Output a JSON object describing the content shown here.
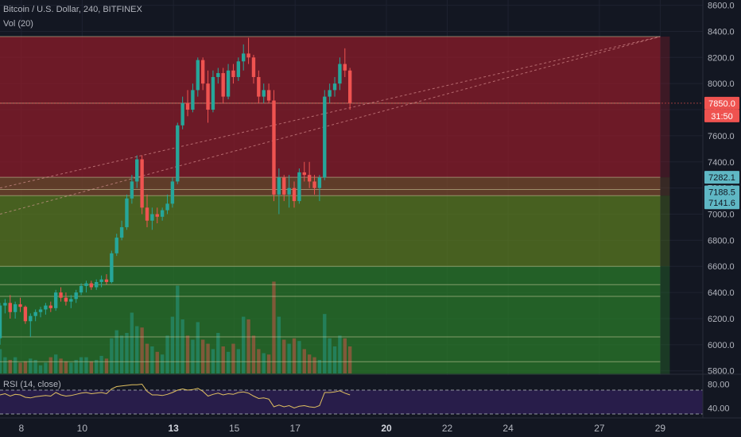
{
  "header": {
    "title": "Bitcoin / U.S. Dollar, 240, BITFINEX",
    "volume_label": "Vol (20)",
    "rsi_label": "RSI (14, close)"
  },
  "colors": {
    "background": "#131722",
    "up": "#26a69a",
    "down": "#ef5350",
    "price_tag": "#ef5350",
    "level_tag": "#5fb7c4",
    "zone_red": "#8c1c2a",
    "zone_brown": "#7a4a2c",
    "zone_olive": "#5a7a20",
    "zone_green": "#2a7a2a",
    "rsi_band": "#2e1f55",
    "rsi_line": "#e0c060"
  },
  "chart_data": {
    "type": "candlestick",
    "title": "Bitcoin / U.S. Dollar, 240, BITFINEX",
    "price_axis": {
      "ticks": [
        5800,
        6000,
        6200,
        6400,
        6600,
        6800,
        7000,
        7200,
        7400,
        7600,
        7800,
        8000,
        8200,
        8400,
        8600
      ],
      "tick_labels": [
        "5800.0",
        "6000.0",
        "6200.0",
        "6400.0",
        "6600.0",
        "6800.0",
        "7000.0",
        "7200.0",
        "7400.0",
        "7600.0",
        "7800.0",
        "8000.0",
        "8200.0",
        "8400.0",
        "8600.0"
      ],
      "range": [
        5780,
        8640
      ]
    },
    "time_axis": {
      "ticks": [
        8,
        10,
        13,
        15,
        17,
        20,
        22,
        24,
        27,
        29
      ],
      "tick_labels": [
        "8",
        "10",
        "13",
        "15",
        "17",
        "20",
        "22",
        "24",
        "27",
        "29"
      ],
      "bold": [
        13,
        20
      ],
      "range": [
        7.3,
        30.4
      ]
    },
    "price_tags": [
      {
        "label": "7850.0",
        "value": 7850,
        "kind": "last"
      },
      {
        "label": "31:50",
        "value": 7795,
        "kind": "timer"
      },
      {
        "label": "7282.1",
        "value": 7282.1,
        "kind": "level"
      },
      {
        "label": "7188.5",
        "value": 7188.5,
        "kind": "level"
      },
      {
        "label": "7141.6",
        "value": 7141.6,
        "kind": "level"
      }
    ],
    "zones": [
      {
        "from": 7282,
        "to": 8360,
        "color": "zone_red"
      },
      {
        "from": 7141.6,
        "to": 7282,
        "color": "zone_brown"
      },
      {
        "from": 6600,
        "to": 7141.6,
        "color": "zone_olive"
      },
      {
        "from": 5770,
        "to": 6600,
        "color": "zone_green"
      }
    ],
    "horizontal_levels": [
      8360,
      7850,
      7282.1,
      7188.5,
      7141.6,
      6600,
      6460,
      6370,
      6060,
      5870
    ],
    "zone_end_day": 29.0,
    "trend_lines": [
      {
        "from": [
          7.3,
          7200
        ],
        "to": [
          29.0,
          8360
        ]
      },
      {
        "from": [
          7.3,
          7000
        ],
        "to": [
          29.0,
          8360
        ]
      }
    ],
    "candles_start_day": 7.3,
    "candle_step_days": 0.1667,
    "candles": [
      [
        6050,
        6320,
        6000,
        6300
      ],
      [
        6300,
        6350,
        6240,
        6320
      ],
      [
        6320,
        6380,
        6200,
        6250
      ],
      [
        6250,
        6330,
        6200,
        6310
      ],
      [
        6310,
        6360,
        6250,
        6290
      ],
      [
        6290,
        6300,
        6160,
        6180
      ],
      [
        6180,
        6240,
        6060,
        6220
      ],
      [
        6220,
        6270,
        6180,
        6250
      ],
      [
        6250,
        6290,
        6210,
        6270
      ],
      [
        6270,
        6320,
        6230,
        6300
      ],
      [
        6300,
        6330,
        6250,
        6280
      ],
      [
        6280,
        6420,
        6260,
        6400
      ],
      [
        6400,
        6440,
        6330,
        6360
      ],
      [
        6360,
        6400,
        6300,
        6330
      ],
      [
        6330,
        6380,
        6280,
        6350
      ],
      [
        6350,
        6420,
        6320,
        6400
      ],
      [
        6400,
        6470,
        6380,
        6450
      ],
      [
        6450,
        6490,
        6400,
        6470
      ],
      [
        6470,
        6490,
        6420,
        6440
      ],
      [
        6440,
        6500,
        6420,
        6480
      ],
      [
        6480,
        6530,
        6440,
        6500
      ],
      [
        6500,
        6540,
        6460,
        6480
      ],
      [
        6480,
        6720,
        6470,
        6700
      ],
      [
        6700,
        6850,
        6680,
        6820
      ],
      [
        6820,
        6950,
        6800,
        6900
      ],
      [
        6900,
        7150,
        6880,
        7120
      ],
      [
        7120,
        7300,
        7080,
        7250
      ],
      [
        7250,
        7450,
        7200,
        7420
      ],
      [
        7420,
        7450,
        7000,
        7050
      ],
      [
        7050,
        7150,
        6900,
        6950
      ],
      [
        6950,
        7050,
        6880,
        7000
      ],
      [
        7000,
        7050,
        6930,
        6980
      ],
      [
        6980,
        7050,
        6950,
        7030
      ],
      [
        7030,
        7150,
        7000,
        7080
      ],
      [
        7080,
        7280,
        7050,
        7250
      ],
      [
        7250,
        7700,
        7230,
        7680
      ],
      [
        7680,
        7900,
        7650,
        7850
      ],
      [
        7850,
        7950,
        7750,
        7800
      ],
      [
        7800,
        8000,
        7780,
        7950
      ],
      [
        7950,
        8200,
        7900,
        8180
      ],
      [
        8180,
        8200,
        7950,
        8000
      ],
      [
        8000,
        8100,
        7700,
        7800
      ],
      [
        7800,
        8100,
        7780,
        8050
      ],
      [
        8050,
        8120,
        8000,
        8080
      ],
      [
        8080,
        8120,
        7850,
        7900
      ],
      [
        7900,
        8150,
        7880,
        8100
      ],
      [
        8100,
        8150,
        8000,
        8050
      ],
      [
        8050,
        8200,
        8020,
        8170
      ],
      [
        8170,
        8300,
        8100,
        8230
      ],
      [
        8230,
        8350,
        8150,
        8200
      ],
      [
        8200,
        8220,
        8000,
        8050
      ],
      [
        8050,
        8100,
        7850,
        7900
      ],
      [
        7900,
        8000,
        7850,
        7950
      ],
      [
        7950,
        8000,
        7850,
        7870
      ],
      [
        7870,
        7950,
        7100,
        7150
      ],
      [
        7150,
        7350,
        7000,
        7280
      ],
      [
        7280,
        7300,
        7100,
        7150
      ],
      [
        7150,
        7300,
        7050,
        7200
      ],
      [
        7200,
        7250,
        7050,
        7100
      ],
      [
        7100,
        7350,
        7080,
        7320
      ],
      [
        7320,
        7400,
        7250,
        7300
      ],
      [
        7300,
        7400,
        7200,
        7250
      ],
      [
        7250,
        7300,
        7150,
        7200
      ],
      [
        7200,
        7300,
        7100,
        7280
      ],
      [
        7280,
        7950,
        7260,
        7900
      ],
      [
        7900,
        8000,
        7850,
        7950
      ],
      [
        7950,
        8050,
        7900,
        8000
      ],
      [
        8000,
        8200,
        7950,
        8150
      ],
      [
        8150,
        8270,
        8050,
        8100
      ],
      [
        8100,
        8120,
        7800,
        7850
      ]
    ],
    "volume": [
      18,
      12,
      10,
      12,
      8,
      9,
      11,
      10,
      6,
      8,
      12,
      14,
      11,
      9,
      8,
      10,
      12,
      12,
      9,
      10,
      13,
      11,
      26,
      32,
      28,
      30,
      45,
      35,
      34,
      22,
      20,
      16,
      14,
      28,
      42,
      65,
      40,
      28,
      25,
      38,
      25,
      22,
      18,
      30,
      20,
      16,
      22,
      18,
      42,
      40,
      28,
      18,
      15,
      14,
      68,
      42,
      25,
      22,
      26,
      24,
      18,
      14,
      12,
      10,
      44,
      26,
      20,
      28,
      26,
      20
    ],
    "rsi": {
      "ticks": [
        40,
        80
      ],
      "tick_labels": [
        "40.00",
        "80.00"
      ],
      "overbought": 70,
      "oversold": 30,
      "values": [
        62,
        64,
        60,
        63,
        62,
        58,
        57,
        59,
        60,
        61,
        60,
        66,
        62,
        60,
        61,
        63,
        65,
        66,
        64,
        65,
        66,
        64,
        72,
        76,
        77,
        78,
        79,
        79,
        80,
        68,
        62,
        62,
        61,
        63,
        66,
        70,
        72,
        70,
        71,
        73,
        68,
        60,
        63,
        65,
        62,
        64,
        63,
        66,
        67,
        65,
        60,
        56,
        57,
        55,
        42,
        45,
        42,
        44,
        40,
        43,
        44,
        42,
        41,
        44,
        66,
        66,
        67,
        69,
        65,
        62
      ]
    }
  }
}
